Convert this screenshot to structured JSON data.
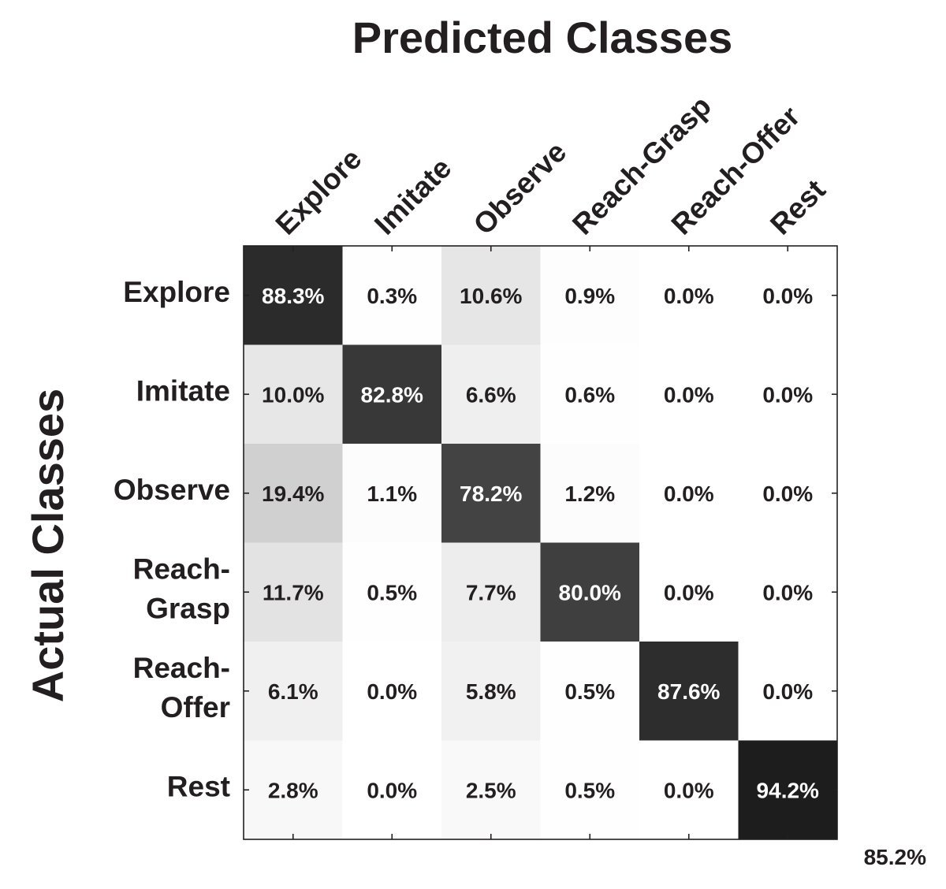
{
  "chart_data": {
    "type": "heatmap",
    "title": "Predicted Classes",
    "xlabel": "Predicted Classes",
    "ylabel": "Actual Classes",
    "x_categories": [
      "Explore",
      "Imitate",
      "Observe",
      "Reach-Grasp",
      "Reach-Offer",
      "Rest"
    ],
    "y_categories": [
      "Explore",
      "Imitate",
      "Observe",
      "Reach-Grasp",
      "Reach-Offer",
      "Rest"
    ],
    "y_label_lines": [
      [
        "Explore"
      ],
      [
        "Imitate"
      ],
      [
        "Observe"
      ],
      [
        "Reach-",
        "Grasp"
      ],
      [
        "Reach-",
        "Offer"
      ],
      [
        "Rest"
      ]
    ],
    "values": [
      [
        88.3,
        0.3,
        10.6,
        0.9,
        0.0,
        0.0
      ],
      [
        10.0,
        82.8,
        6.6,
        0.6,
        0.0,
        0.0
      ],
      [
        19.4,
        1.1,
        78.2,
        1.2,
        0.0,
        0.0
      ],
      [
        11.7,
        0.5,
        7.7,
        80.0,
        0.0,
        0.0
      ],
      [
        6.1,
        0.0,
        5.8,
        0.5,
        87.6,
        0.0
      ],
      [
        2.8,
        0.0,
        2.5,
        0.5,
        0.0,
        94.2
      ]
    ],
    "labels": [
      [
        "88.3%",
        "0.3%",
        "10.6%",
        "0.9%",
        "0.0%",
        "0.0%"
      ],
      [
        "10.0%",
        "82.8%",
        "6.6%",
        "0.6%",
        "0.0%",
        "0.0%"
      ],
      [
        "19.4%",
        "1.1%",
        "78.2%",
        "1.2%",
        "0.0%",
        "0.0%"
      ],
      [
        "11.7%",
        "0.5%",
        "7.7%",
        "80.0%",
        "0.0%",
        "0.0%"
      ],
      [
        "6.1%",
        "0.0%",
        "5.8%",
        "0.5%",
        "87.6%",
        "0.0%"
      ],
      [
        "2.8%",
        "0.0%",
        "2.5%",
        "0.5%",
        "0.0%",
        "94.2%"
      ]
    ],
    "overall_accuracy": "85.2%",
    "colormap": "grayscale (white = 0%, black = 100%)",
    "grid": false,
    "legend": "none"
  }
}
